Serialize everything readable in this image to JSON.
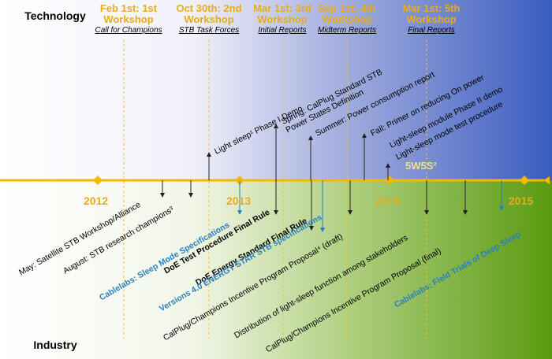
{
  "labels": {
    "technology": "Technology",
    "industry": "Industry"
  },
  "workshops": [
    {
      "title": "Feb 1st: 1st Workshop",
      "sub": "Call for Champions"
    },
    {
      "title": "Oct 30th: 2nd Workshop",
      "sub": "STB Task Forces"
    },
    {
      "title": "Mar 1st: 3rd Workshop",
      "sub": "Initial Reports"
    },
    {
      "title": "Sep 1st: 4th Workshop",
      "sub": "Midterm Reports"
    },
    {
      "title": "Mar 1st: 5th Workshop",
      "sub": "Final Reports"
    }
  ],
  "years": [
    "2012",
    "2013",
    "2014",
    "2015"
  ],
  "tech_items": [
    "Light sleep¹ Phase I Demo",
    "Spring: CalPlug Standard STB Power States Definition",
    "Summer: Power consumption report",
    "Fall: Primer on reducing On power",
    "Light-sleep  module Phase II demo",
    "Light-sleep mode test procedure"
  ],
  "w5s2": "5W5S²",
  "industry_items": [
    "May: Satellite STB Workshop/Alliance",
    "August: STB research champions³",
    "Cablelabs: Sleep Mode Specifications",
    "DoE Test Procedure Final Rule",
    "DoE Energy Standard Final Rule",
    "Versions 4.0 ENERGY STAR STB specifications",
    "CalPlug/Champions Incentive Program Proposal⁴ (draft)",
    "Distribution of light-sleep  function among stakeholders",
    "CalPlug/Champions Incentive Program Proposal (final)",
    "Cablelabs: Field Trials of Deep Sleep"
  ],
  "colors": {
    "timeline": "#f5b800",
    "gold_text": "#e8ac1a",
    "blue_text": "#2a7fc1",
    "tech_gradient_end": "#3a5cbf",
    "industry_gradient_end": "#5a9a10"
  }
}
